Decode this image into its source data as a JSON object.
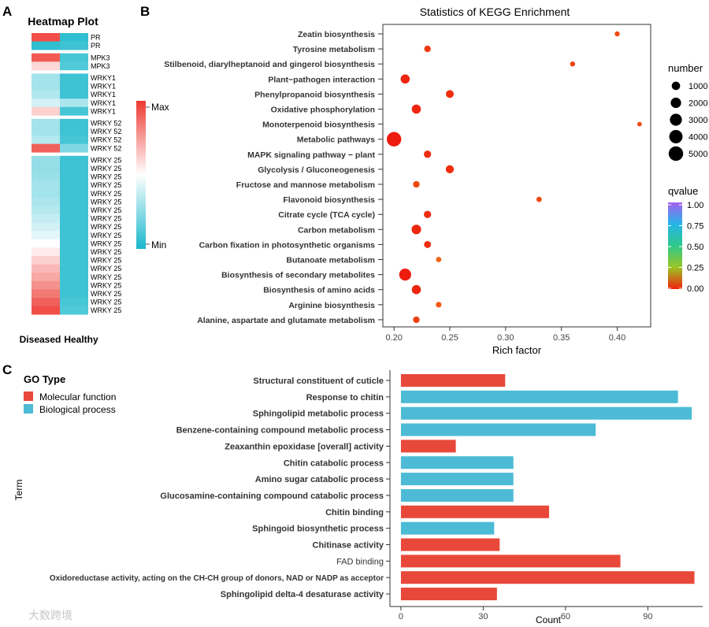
{
  "panels": {
    "a": "A",
    "b": "B",
    "c": "C"
  },
  "heatmap": {
    "title": "Heatmap Plot",
    "columns": [
      "Diseased",
      "Healthy"
    ],
    "legend": {
      "max_label": "Max",
      "min_label": "Min"
    },
    "colors": {
      "high": "#ee3a32",
      "mid": "#ffffff",
      "low": "#19b8cc"
    },
    "groups": [
      {
        "rows": [
          {
            "label": "PR",
            "values": [
              0.95,
              0.05
            ]
          },
          {
            "label": "PR",
            "values": [
              0.05,
              0.08
            ]
          }
        ]
      },
      {
        "rows": [
          {
            "label": "MPK3",
            "values": [
              0.92,
              0.1
            ]
          },
          {
            "label": "MPK3",
            "values": [
              0.6,
              0.12
            ]
          }
        ]
      },
      {
        "rows": [
          {
            "label": "WRKY1",
            "values": [
              0.3,
              0.08
            ]
          },
          {
            "label": "WRKY1",
            "values": [
              0.3,
              0.08
            ]
          },
          {
            "label": "WRKY1",
            "values": [
              0.33,
              0.08
            ]
          },
          {
            "label": "WRKY1",
            "values": [
              0.4,
              0.32
            ]
          },
          {
            "label": "WRKY1",
            "values": [
              0.62,
              0.1
            ]
          }
        ]
      },
      {
        "rows": [
          {
            "label": "WRKY 52",
            "values": [
              0.3,
              0.08
            ]
          },
          {
            "label": "WRKY 52",
            "values": [
              0.3,
              0.08
            ]
          },
          {
            "label": "WRKY 52",
            "values": [
              0.34,
              0.1
            ]
          },
          {
            "label": "WRKY 52",
            "values": [
              0.9,
              0.22
            ]
          }
        ]
      },
      {
        "rows": [
          {
            "label": "WRKY 25",
            "values": [
              0.27,
              0.08
            ]
          },
          {
            "label": "WRKY 25",
            "values": [
              0.27,
              0.08
            ]
          },
          {
            "label": "WRKY 25",
            "values": [
              0.28,
              0.08
            ]
          },
          {
            "label": "WRKY 25",
            "values": [
              0.3,
              0.08
            ]
          },
          {
            "label": "WRKY 25",
            "values": [
              0.3,
              0.08
            ]
          },
          {
            "label": "WRKY 25",
            "values": [
              0.32,
              0.08
            ]
          },
          {
            "label": "WRKY 25",
            "values": [
              0.34,
              0.08
            ]
          },
          {
            "label": "WRKY 25",
            "values": [
              0.37,
              0.08
            ]
          },
          {
            "label": "WRKY 25",
            "values": [
              0.4,
              0.08
            ]
          },
          {
            "label": "WRKY 25",
            "values": [
              0.44,
              0.08
            ]
          },
          {
            "label": "WRKY 25",
            "values": [
              0.5,
              0.08
            ]
          },
          {
            "label": "WRKY 25",
            "values": [
              0.55,
              0.08
            ]
          },
          {
            "label": "WRKY 25",
            "values": [
              0.62,
              0.08
            ]
          },
          {
            "label": "WRKY 25",
            "values": [
              0.68,
              0.08
            ]
          },
          {
            "label": "WRKY 25",
            "values": [
              0.72,
              0.08
            ]
          },
          {
            "label": "WRKY 25",
            "values": [
              0.78,
              0.08
            ]
          },
          {
            "label": "WRKY 25",
            "values": [
              0.84,
              0.08
            ]
          },
          {
            "label": "WRKY 25",
            "values": [
              0.9,
              0.1
            ]
          },
          {
            "label": "WRKY 25",
            "values": [
              0.95,
              0.12
            ]
          }
        ]
      }
    ]
  },
  "watermark": "大数跨境",
  "chart_data": [
    {
      "type": "scatter",
      "title": "Statistics of KEGG Enrichment",
      "xlabel": "Rich factor",
      "ylabel": "",
      "xlim": [
        0.19,
        0.43
      ],
      "xticks": [
        0.2,
        0.25,
        0.3,
        0.35,
        0.4
      ],
      "grid": false,
      "categories": [
        "Zeatin biosynthesis",
        "Tyrosine metabolism",
        "Stilbenoid, diarylheptanoid and gingerol biosynthesis",
        "Plant−pathogen interaction",
        "Phenylpropanoid biosynthesis",
        "Oxidative phosphorylation",
        "Monoterpenoid biosynthesis",
        "Metabolic pathways",
        "MAPK signaling pathway − plant",
        "Glycolysis / Gluconeogenesis",
        "Fructose and mannose metabolism",
        "Flavonoid biosynthesis",
        "Citrate cycle (TCA cycle)",
        "Carbon metabolism",
        "Carbon fixation in photosynthetic organisms",
        "Butanoate metabolism",
        "Biosynthesis of secondary metabolites",
        "Biosynthesis of amino acids",
        "Arginine biosynthesis",
        "Alanine, aspartate and glutamate metabolism"
      ],
      "points": [
        {
          "x": 0.4,
          "number": 100,
          "qvalue": 0.05
        },
        {
          "x": 0.23,
          "number": 400,
          "qvalue": 0.03
        },
        {
          "x": 0.36,
          "number": 100,
          "qvalue": 0.04
        },
        {
          "x": 0.21,
          "number": 1300,
          "qvalue": 0.01
        },
        {
          "x": 0.25,
          "number": 800,
          "qvalue": 0.02
        },
        {
          "x": 0.22,
          "number": 1300,
          "qvalue": 0.01
        },
        {
          "x": 0.42,
          "number": 50,
          "qvalue": 0.05
        },
        {
          "x": 0.2,
          "number": 5000,
          "qvalue": 0.0
        },
        {
          "x": 0.23,
          "number": 600,
          "qvalue": 0.02
        },
        {
          "x": 0.25,
          "number": 900,
          "qvalue": 0.02
        },
        {
          "x": 0.22,
          "number": 400,
          "qvalue": 0.05
        },
        {
          "x": 0.33,
          "number": 150,
          "qvalue": 0.05
        },
        {
          "x": 0.23,
          "number": 600,
          "qvalue": 0.02
        },
        {
          "x": 0.22,
          "number": 1500,
          "qvalue": 0.01
        },
        {
          "x": 0.23,
          "number": 500,
          "qvalue": 0.02
        },
        {
          "x": 0.24,
          "number": 150,
          "qvalue": 0.1
        },
        {
          "x": 0.21,
          "number": 3000,
          "qvalue": 0.0
        },
        {
          "x": 0.22,
          "number": 1300,
          "qvalue": 0.01
        },
        {
          "x": 0.24,
          "number": 200,
          "qvalue": 0.08
        },
        {
          "x": 0.22,
          "number": 400,
          "qvalue": 0.04
        }
      ],
      "size_legend": {
        "title": "number",
        "values": [
          1000,
          2000,
          3000,
          4000,
          5000
        ]
      },
      "color_legend": {
        "title": "qvalue",
        "ticks": [
          "1.00",
          "0.75",
          "0.50",
          "0.25",
          "0.00"
        ],
        "colors": [
          "#ee1c0e",
          "#f37a16",
          "#6fc13a",
          "#2bc7b8",
          "#8b66e8"
        ]
      },
      "legend_position": "right"
    },
    {
      "type": "bar",
      "orientation": "horizontal",
      "xlabel": "Count",
      "ylabel": "Term",
      "xlim": [
        -4,
        110
      ],
      "xticks": [
        0,
        30,
        60,
        90
      ],
      "legend_title": "GO Type",
      "legend_position": "top-left",
      "types": [
        {
          "name": "Molecular function",
          "color": "#e8483a"
        },
        {
          "name": "Biological process",
          "color": "#4dbbd5"
        }
      ],
      "categories": [
        "Structural constituent of cuticle",
        "Response to chitin",
        "Sphingolipid metabolic process",
        "Benzene-containing compound metabolic process",
        "Zeaxanthin epoxidase [overall] activity",
        "Chitin catabolic process",
        "Amino sugar catabolic process",
        "Glucosamine-containing compound catabolic process",
        "Chitin binding",
        "Sphingoid biosynthetic process",
        "Chitinase activity",
        "FAD binding",
        "Oxidoreductase activity, acting on the CH-CH group of donors, NAD or NADP as acceptor",
        "Sphingolipid delta-4 desaturase activity"
      ],
      "values": [
        38,
        101,
        106,
        71,
        20,
        41,
        41,
        41,
        54,
        34,
        36,
        80,
        107,
        35
      ],
      "type_index": [
        0,
        1,
        1,
        1,
        0,
        1,
        1,
        1,
        0,
        1,
        0,
        0,
        0,
        0
      ]
    }
  ]
}
